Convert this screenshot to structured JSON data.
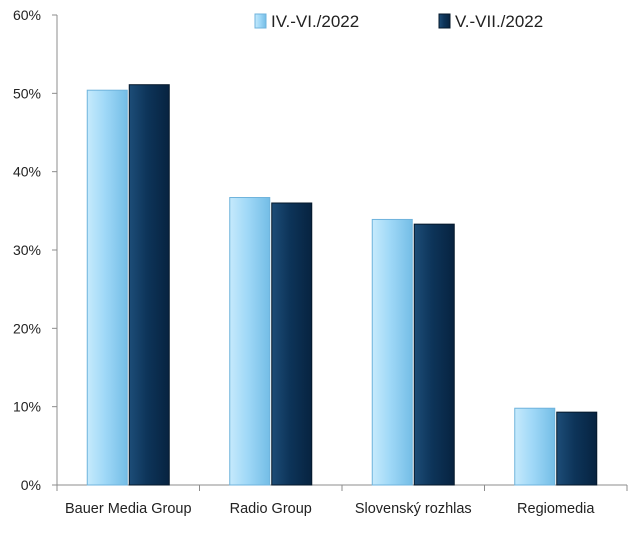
{
  "chart_data": {
    "type": "bar",
    "categories": [
      "Bauer Media Group",
      "Radio Group",
      "Slovenský rozhlas",
      "Regiomedia"
    ],
    "series": [
      {
        "name": "IV.-VI./2022",
        "values": [
          50.4,
          36.7,
          33.9,
          9.8
        ],
        "color": "#9fd8f7"
      },
      {
        "name": "V.-VII./2022",
        "values": [
          51.1,
          36.0,
          33.3,
          9.3
        ],
        "color": "#0d3459"
      }
    ],
    "y_ticks": [
      "0%",
      "10%",
      "20%",
      "30%",
      "40%",
      "50%",
      "60%"
    ],
    "ylim": [
      0,
      60
    ],
    "grid": false,
    "legend_position": "top-right"
  }
}
